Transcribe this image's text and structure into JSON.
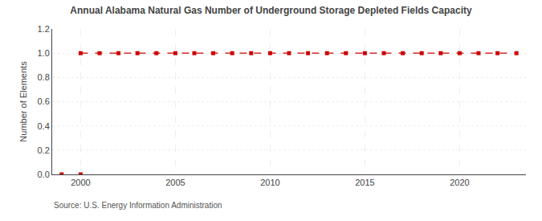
{
  "chart_data": {
    "type": "line",
    "title": "Annual Alabama Natural Gas Number of Underground Storage Depleted Fields Capacity",
    "ylabel": "Number of Elements",
    "annotations": [
      "Source: U.S. Energy Information Administration"
    ],
    "series": [
      {
        "x": [
          2000,
          2001,
          2002,
          2003,
          2004,
          2005,
          2006,
          2007,
          2008,
          2009,
          2010,
          2011,
          2012,
          2013,
          2014,
          2015,
          2016,
          2017,
          2018,
          2019,
          2020,
          2021,
          2022,
          2023
        ],
        "values": [
          1,
          1,
          1,
          1,
          1,
          1,
          1,
          1,
          1,
          1,
          1,
          1,
          1,
          1,
          1,
          1,
          1,
          1,
          1,
          1,
          1,
          1,
          1,
          1
        ],
        "color": "#cc0000",
        "line_style": "dashed",
        "marker": "square"
      },
      {
        "x": [
          1999,
          2000
        ],
        "values": [
          0,
          0
        ],
        "color": "#cc0000",
        "line_style": "none",
        "marker": "square"
      }
    ],
    "xlim": [
      1998.5,
      2023.5
    ],
    "xticks": [
      2000,
      2005,
      2010,
      2015,
      2020
    ],
    "ylim": [
      0.0,
      1.2
    ],
    "yticks": [
      {
        "value": 0,
        "label": "0.0"
      },
      0.2,
      0.4,
      0.6,
      0.8,
      {
        "value": 1,
        "label": "1.0"
      },
      1.2
    ],
    "grid": true
  }
}
